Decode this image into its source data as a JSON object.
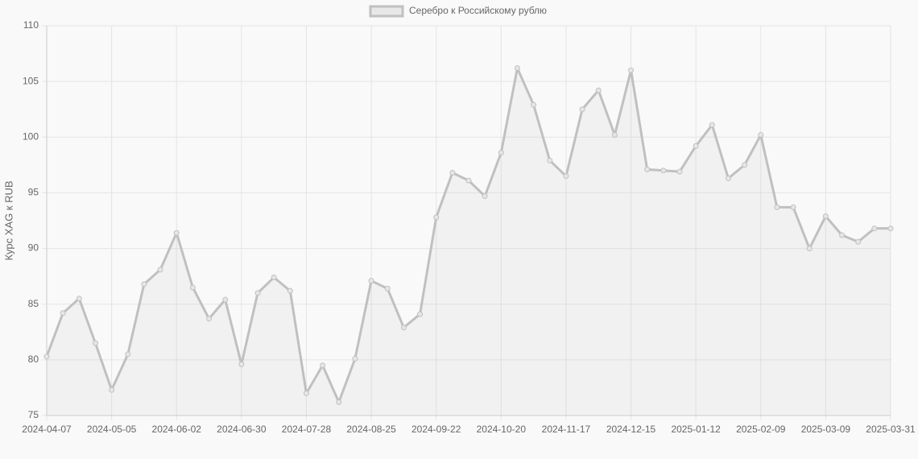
{
  "chart_data": {
    "type": "line",
    "y_label": "Курс XAG к RUB",
    "categories": [
      "2024-04-07",
      null,
      null,
      null,
      "2024-05-05",
      null,
      null,
      null,
      "2024-06-02",
      null,
      null,
      null,
      "2024-06-30",
      null,
      null,
      null,
      "2024-07-28",
      null,
      null,
      null,
      "2024-08-25",
      null,
      null,
      null,
      "2024-09-22",
      null,
      null,
      null,
      "2024-10-20",
      null,
      null,
      null,
      "2024-11-17",
      null,
      null,
      null,
      "2024-12-15",
      null,
      null,
      null,
      "2025-01-12",
      null,
      null,
      null,
      "2025-02-09",
      null,
      null,
      null,
      "2025-03-09",
      null,
      null,
      null,
      "2025-03-31"
    ],
    "series": [
      {
        "name": "Серебро к Российскому рублю",
        "color": "#c0c0c0",
        "values": [
          80.3,
          84.2,
          85.5,
          81.5,
          77.3,
          80.5,
          86.8,
          88.1,
          91.4,
          86.5,
          83.7,
          85.4,
          79.6,
          86.0,
          87.4,
          86.2,
          77.0,
          79.5,
          76.2,
          80.1,
          87.1,
          86.4,
          82.9,
          84.1,
          92.8,
          96.8,
          96.1,
          94.7,
          98.6,
          106.2,
          102.9,
          97.9,
          96.5,
          102.5,
          104.2,
          100.2,
          106.0,
          97.1,
          97.0,
          96.9,
          99.2,
          101.1,
          96.3,
          97.5,
          100.2,
          93.7,
          93.7,
          90.0,
          92.9,
          91.2,
          90.6,
          91.8,
          91.8
        ]
      }
    ],
    "ylim": [
      75,
      110
    ],
    "yticks": [
      75,
      80,
      85,
      90,
      95,
      100,
      105,
      110
    ],
    "grid": true,
    "legend": "top"
  }
}
